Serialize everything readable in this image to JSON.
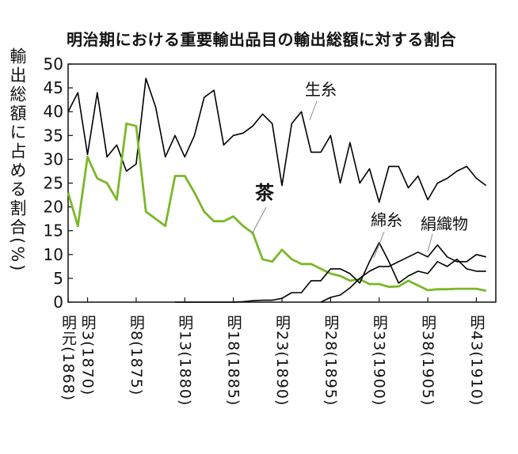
{
  "chart_data": {
    "type": "line",
    "title": "明治期における重要輸出品目の輸出総額に対する割合",
    "ylabel": "輸出総額に占める割合(%)",
    "xlabel": "",
    "ylim": [
      0,
      50
    ],
    "yticks": [
      0,
      5,
      10,
      15,
      20,
      25,
      30,
      35,
      40,
      45,
      50
    ],
    "xlim": [
      1868,
      1912
    ],
    "xtick_years": [
      1868,
      1870,
      1875,
      1880,
      1885,
      1890,
      1895,
      1900,
      1905,
      1910
    ],
    "xtick_labels": [
      "明元(1868)",
      "明3(1870)",
      "明8(1875)",
      "明13(1880)",
      "明18(1885)",
      "明23(1890)",
      "明28(1895)",
      "明33(1900)",
      "明38(1905)",
      "明43(1910)"
    ],
    "grid": false,
    "legend": "inline labels",
    "series": [
      {
        "name": "生糸",
        "color": "#000000",
        "x": [
          1868,
          1869,
          1870,
          1871,
          1872,
          1873,
          1874,
          1875,
          1876,
          1877,
          1878,
          1879,
          1880,
          1881,
          1882,
          1883,
          1884,
          1885,
          1886,
          1887,
          1888,
          1889,
          1890,
          1891,
          1892,
          1893,
          1894,
          1895,
          1896,
          1897,
          1898,
          1899,
          1900,
          1901,
          1902,
          1903,
          1904,
          1905,
          1906,
          1907,
          1908,
          1909,
          1910,
          1911
        ],
        "values": [
          40,
          44,
          31,
          44,
          30.5,
          33,
          27.5,
          29,
          47,
          41,
          30.5,
          35,
          30.5,
          35,
          43,
          44.5,
          33,
          35,
          35.5,
          37,
          39.5,
          37.5,
          24.5,
          37.5,
          40,
          31.5,
          31.5,
          35,
          25,
          33.5,
          25,
          28,
          21,
          28.5,
          28.5,
          24,
          26.5,
          21.5,
          25,
          26,
          27.5,
          28.5,
          26,
          24.5
        ]
      },
      {
        "name": "茶",
        "color": "#7ab828",
        "x": [
          1868,
          1869,
          1870,
          1871,
          1872,
          1873,
          1874,
          1875,
          1876,
          1877,
          1878,
          1879,
          1880,
          1881,
          1882,
          1883,
          1884,
          1885,
          1886,
          1887,
          1888,
          1889,
          1890,
          1891,
          1892,
          1893,
          1894,
          1895,
          1896,
          1897,
          1898,
          1899,
          1900,
          1901,
          1902,
          1903,
          1904,
          1905,
          1906,
          1907,
          1908,
          1909,
          1910,
          1911
        ],
        "values": [
          23,
          16,
          30.5,
          26,
          25,
          21.5,
          37.5,
          37,
          19,
          17.5,
          16,
          26.5,
          26.5,
          23,
          19,
          17,
          17,
          18,
          16,
          14.5,
          9,
          8.5,
          11,
          9,
          8,
          8,
          7,
          6,
          5.5,
          4.5,
          4.8,
          3.8,
          3.8,
          3.2,
          3.3,
          4.5,
          3.5,
          2.5,
          2.7,
          2.7,
          2.8,
          2.8,
          2.8,
          2.4
        ]
      },
      {
        "name": "綿糸",
        "color": "#000000",
        "x": [
          1879,
          1880,
          1881,
          1882,
          1883,
          1884,
          1885,
          1886,
          1887,
          1888,
          1889,
          1890,
          1891,
          1892,
          1893,
          1894,
          1895,
          1896,
          1897,
          1898,
          1899,
          1900,
          1901,
          1902,
          1903,
          1904,
          1905,
          1906,
          1907,
          1908,
          1909,
          1910,
          1911
        ],
        "values": [
          0,
          0,
          0,
          0,
          0,
          0,
          0,
          0.1,
          0.3,
          0.4,
          0.4,
          0.8,
          2,
          2,
          4.5,
          4.5,
          7,
          7,
          6,
          4,
          8.5,
          12.5,
          8.5,
          4,
          5.5,
          6.5,
          6,
          8.5,
          7.5,
          9,
          7,
          6.5,
          6.5
        ]
      },
      {
        "name": "絹織物",
        "color": "#000000",
        "x": [
          1894,
          1895,
          1896,
          1897,
          1898,
          1899,
          1900,
          1901,
          1902,
          1903,
          1904,
          1905,
          1906,
          1907,
          1908,
          1909,
          1910,
          1911
        ],
        "values": [
          0,
          1,
          1.5,
          3,
          5,
          6.5,
          7.5,
          7.5,
          8.5,
          9.5,
          10.5,
          9.5,
          12,
          9.5,
          8.5,
          8.5,
          10,
          9.5
        ]
      }
    ],
    "annotations": [
      {
        "text": "生糸",
        "series": "生糸"
      },
      {
        "text": "茶",
        "series": "茶"
      },
      {
        "text": "綿糸",
        "series": "綿糸"
      },
      {
        "text": "絹織物",
        "series": "絹織物"
      }
    ]
  }
}
